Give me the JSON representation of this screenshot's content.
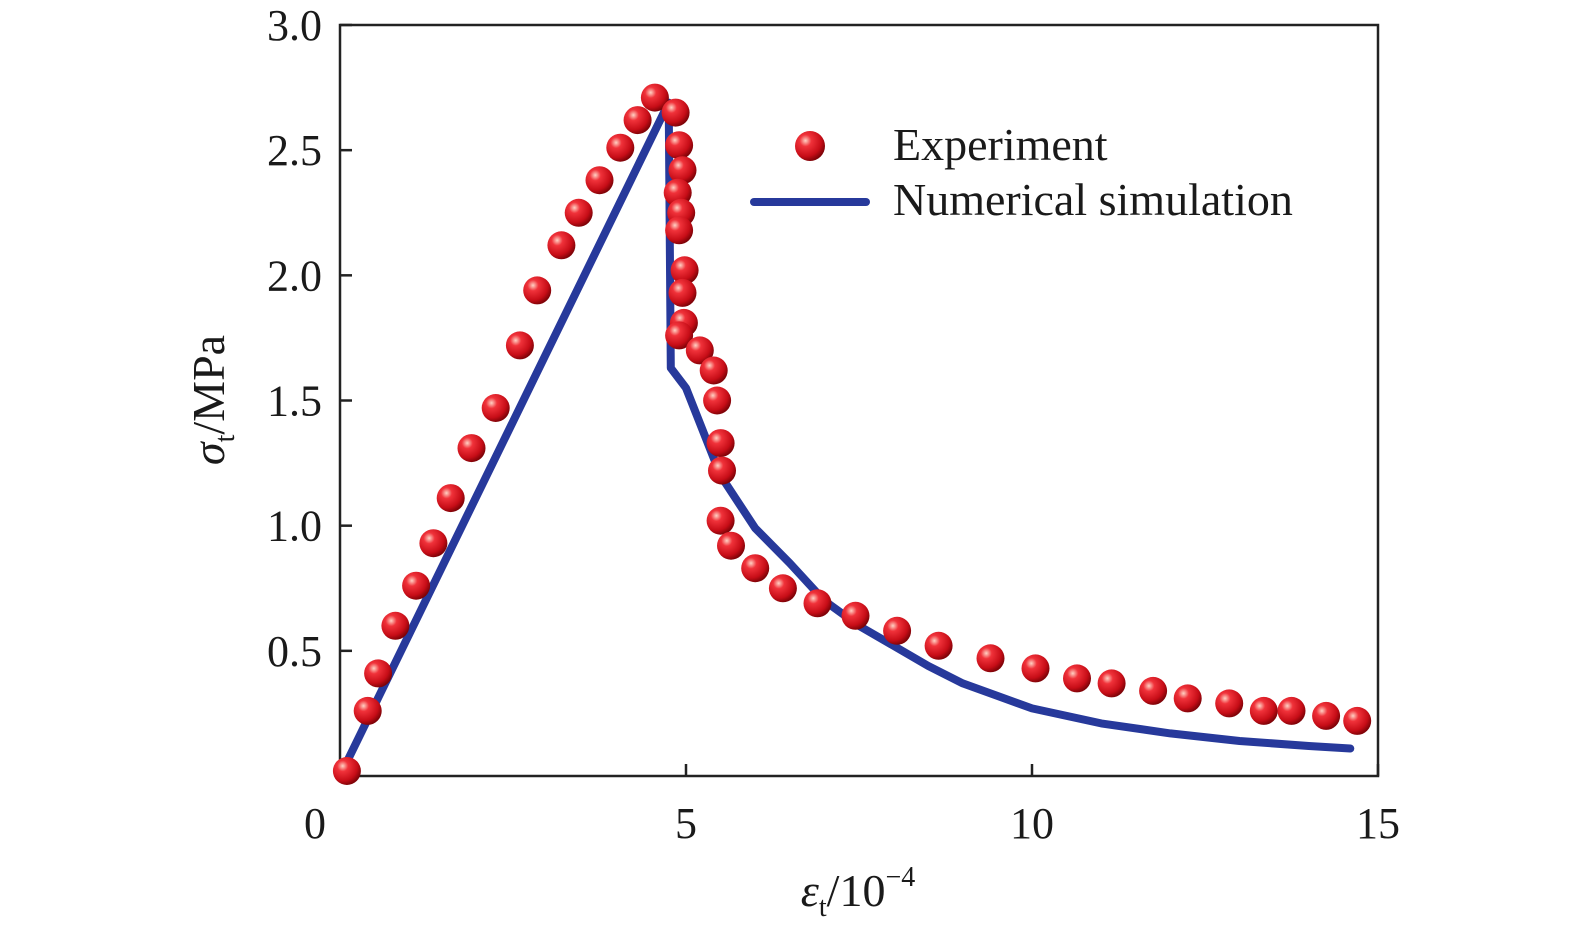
{
  "chart_data": {
    "type": "line",
    "title": "",
    "xlabel": {
      "symbol": "ε",
      "subscript": "t",
      "suffix": "/10",
      "superscript": "−4"
    },
    "ylabel": {
      "symbol": "σ",
      "subscript": "t",
      "suffix": "/MPa"
    },
    "xlim": [
      0,
      15
    ],
    "ylim": [
      0,
      3.0
    ],
    "x_ticks": [
      0,
      5,
      10,
      15
    ],
    "x_tick_labels": [
      "0",
      "5",
      "10",
      "15"
    ],
    "y_ticks": [
      0.5,
      1.0,
      1.5,
      2.0,
      2.5,
      3.0
    ],
    "y_tick_labels": [
      "0.5",
      "1.0",
      "1.5",
      "2.0",
      "2.5",
      "3.0"
    ],
    "grid": false,
    "legend_position": "top-right",
    "series": [
      {
        "name": "Experiment",
        "kind": "scatter",
        "color": "#d6111b",
        "points": [
          [
            0.1,
            0.02
          ],
          [
            0.4,
            0.26
          ],
          [
            0.55,
            0.41
          ],
          [
            0.8,
            0.6
          ],
          [
            1.1,
            0.76
          ],
          [
            1.35,
            0.93
          ],
          [
            1.6,
            1.11
          ],
          [
            1.9,
            1.31
          ],
          [
            2.25,
            1.47
          ],
          [
            2.6,
            1.72
          ],
          [
            2.85,
            1.94
          ],
          [
            3.2,
            2.12
          ],
          [
            3.45,
            2.25
          ],
          [
            3.75,
            2.38
          ],
          [
            4.05,
            2.51
          ],
          [
            4.3,
            2.62
          ],
          [
            4.55,
            2.71
          ],
          [
            4.85,
            2.65
          ],
          [
            4.9,
            2.52
          ],
          [
            4.95,
            2.42
          ],
          [
            4.88,
            2.33
          ],
          [
            4.93,
            2.25
          ],
          [
            4.9,
            2.18
          ],
          [
            4.98,
            2.02
          ],
          [
            4.95,
            1.93
          ],
          [
            4.97,
            1.81
          ],
          [
            4.9,
            1.76
          ],
          [
            5.2,
            1.7
          ],
          [
            5.4,
            1.62
          ],
          [
            5.45,
            1.5
          ],
          [
            5.5,
            1.33
          ],
          [
            5.52,
            1.22
          ],
          [
            5.5,
            1.02
          ],
          [
            5.65,
            0.92
          ],
          [
            6.0,
            0.83
          ],
          [
            6.4,
            0.75
          ],
          [
            6.9,
            0.69
          ],
          [
            7.45,
            0.64
          ],
          [
            8.05,
            0.58
          ],
          [
            8.65,
            0.52
          ],
          [
            9.4,
            0.47
          ],
          [
            10.05,
            0.43
          ],
          [
            10.65,
            0.39
          ],
          [
            11.15,
            0.37
          ],
          [
            11.75,
            0.34
          ],
          [
            12.25,
            0.31
          ],
          [
            12.85,
            0.29
          ],
          [
            13.35,
            0.26
          ],
          [
            13.75,
            0.26
          ],
          [
            14.25,
            0.24
          ],
          [
            14.7,
            0.22
          ]
        ]
      },
      {
        "name": "Numerical simulation",
        "kind": "line",
        "color": "#27399b",
        "points": [
          [
            0.0,
            0.0
          ],
          [
            4.75,
            2.69
          ],
          [
            4.78,
            1.63
          ],
          [
            5.0,
            1.55
          ],
          [
            5.5,
            1.2
          ],
          [
            6.0,
            0.99
          ],
          [
            6.5,
            0.85
          ],
          [
            7.0,
            0.7
          ],
          [
            7.5,
            0.6
          ],
          [
            8.0,
            0.52
          ],
          [
            8.5,
            0.44
          ],
          [
            9.0,
            0.37
          ],
          [
            9.5,
            0.32
          ],
          [
            10.0,
            0.27
          ],
          [
            11.0,
            0.21
          ],
          [
            12.0,
            0.17
          ],
          [
            13.0,
            0.14
          ],
          [
            14.0,
            0.12
          ],
          [
            14.6,
            0.11
          ]
        ]
      }
    ]
  }
}
